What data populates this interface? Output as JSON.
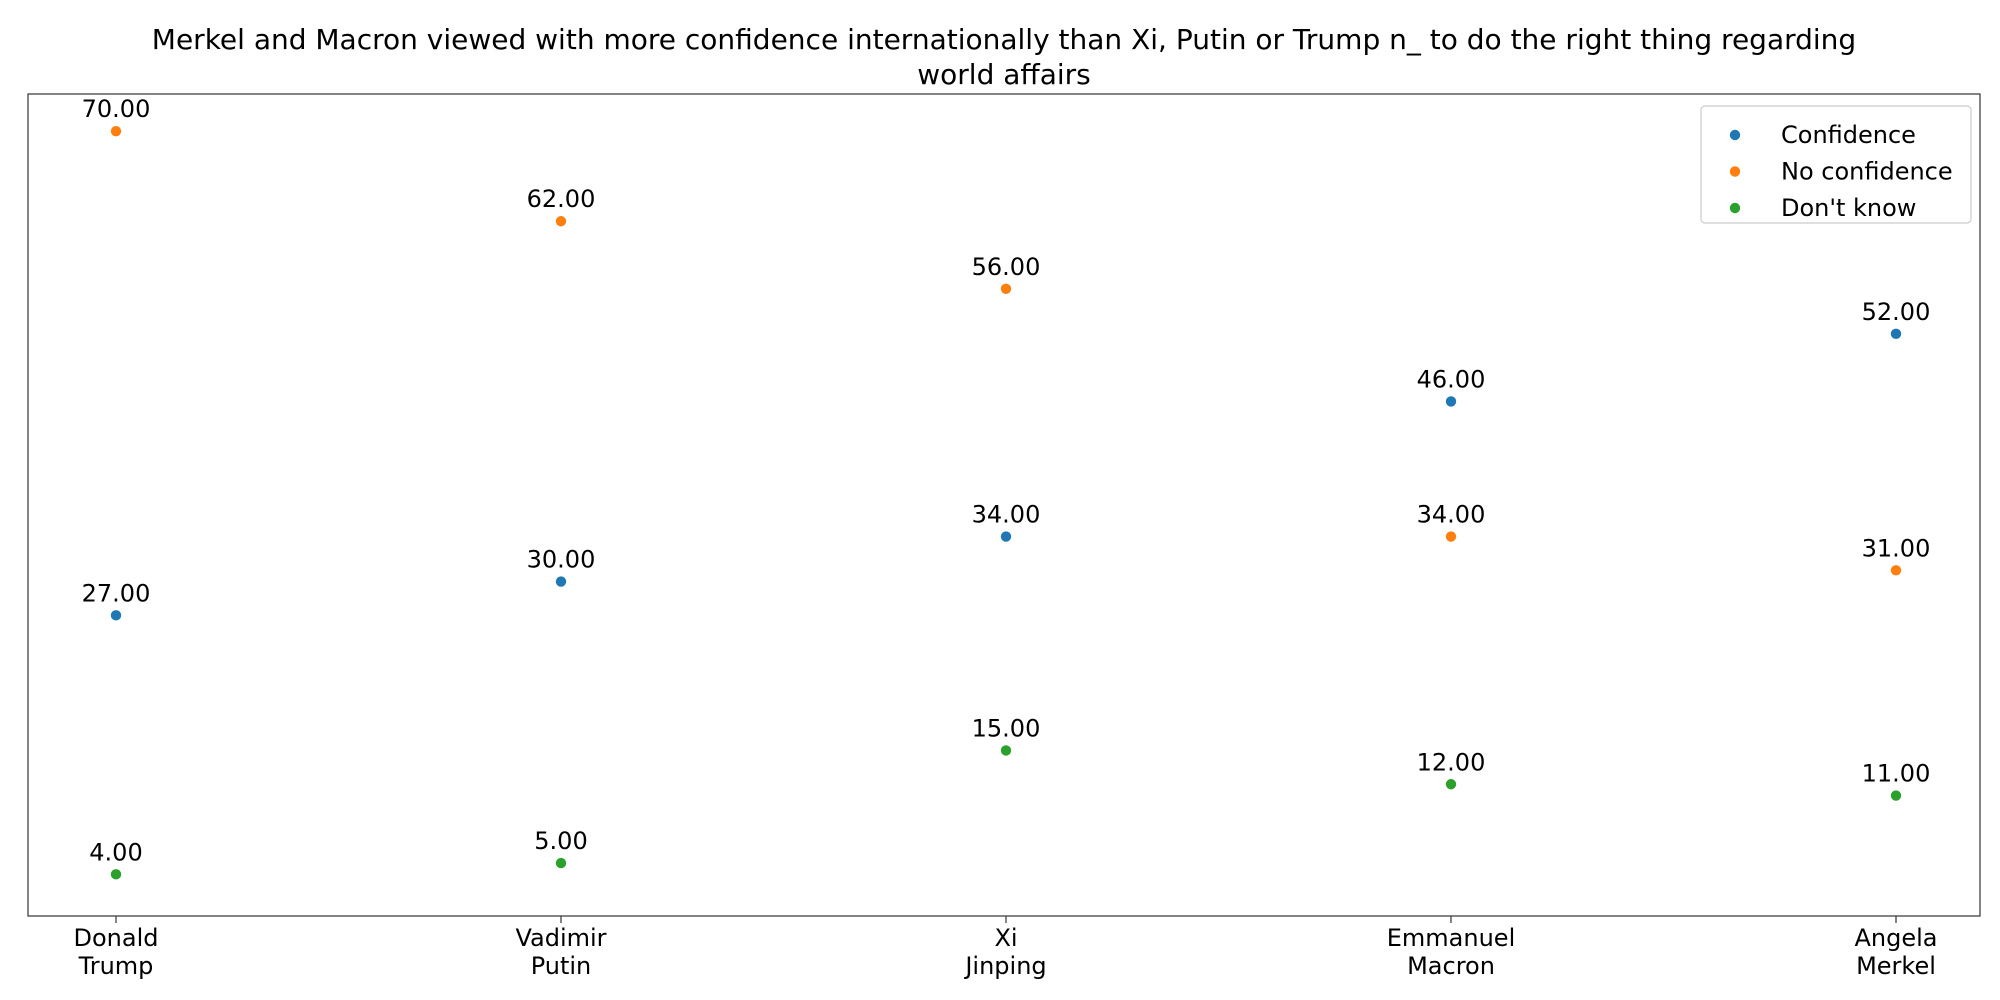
{
  "chart_data": {
    "type": "scatter",
    "title_lines": [
      "Merkel and Macron viewed with more confidence internationally than Xi, Putin or Trump n_ to do the right thing regarding",
      "world affairs"
    ],
    "categories": [
      "Donald\nTrump",
      "Vadimir\nPutin",
      "Xi\nJinping",
      "Emmanuel\nMacron",
      "Angela\nMerkel"
    ],
    "series": [
      {
        "name": "Confidence",
        "color": "#1f77b4",
        "values": [
          27,
          30,
          34,
          46,
          52
        ],
        "labels": [
          "27.00",
          "30.00",
          "34.00",
          "46.00",
          "52.00"
        ]
      },
      {
        "name": "No confidence",
        "color": "#ff7f0e",
        "values": [
          70,
          62,
          56,
          34,
          31
        ],
        "labels": [
          "70.00",
          "62.00",
          "56.00",
          "34.00",
          "31.00"
        ]
      },
      {
        "name": "Don't know",
        "color": "#2ca02c",
        "values": [
          4,
          5,
          15,
          12,
          11
        ],
        "labels": [
          "4.00",
          "5.00",
          "15.00",
          "12.00",
          "11.00"
        ]
      }
    ],
    "ylim": [
      0.3,
      73.3
    ],
    "y_axis_visible": false,
    "grid": false,
    "legend_position": "top-right"
  }
}
